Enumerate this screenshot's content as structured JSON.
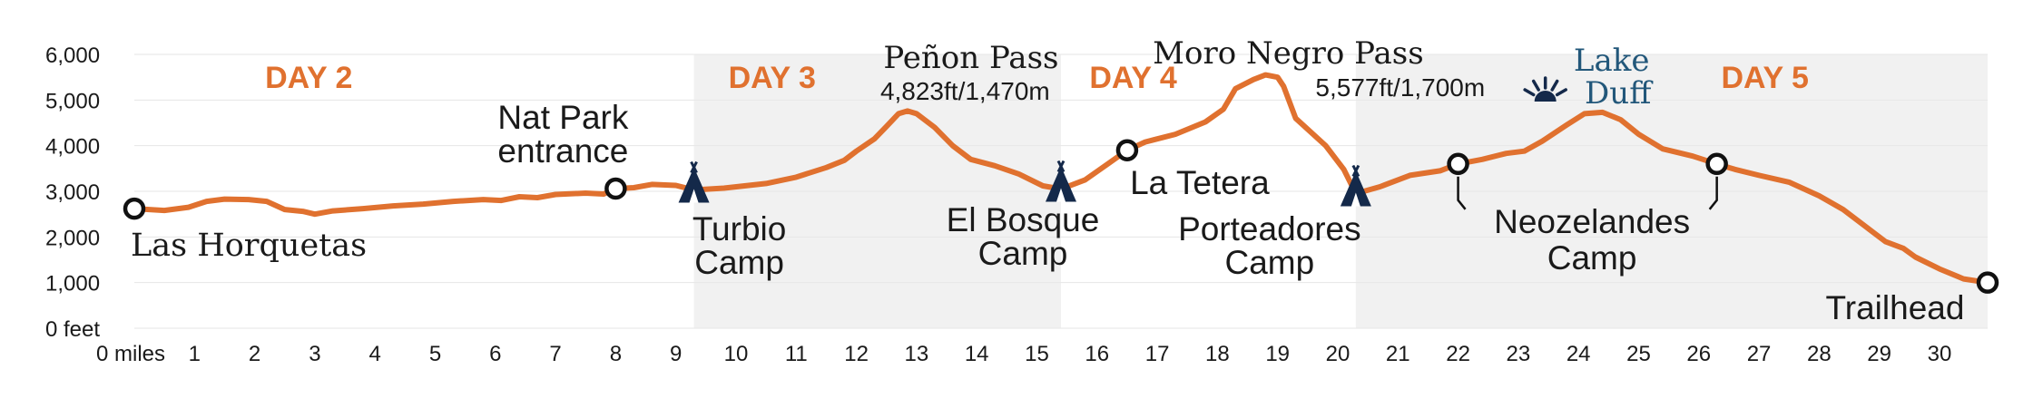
{
  "chart_data": {
    "type": "area",
    "colors": {
      "line": "#e0712f",
      "band": "#f1f1f1",
      "camp_icon": "#14294a",
      "lake": "#22577a"
    },
    "xlim": [
      0,
      30.8
    ],
    "ylim": [
      0,
      6000
    ],
    "y_ticks": [
      {
        "value": 0,
        "label": "0 feet"
      },
      {
        "value": 1000,
        "label": "1,000"
      },
      {
        "value": 2000,
        "label": "2,000"
      },
      {
        "value": 3000,
        "label": "3,000"
      },
      {
        "value": 4000,
        "label": "4,000"
      },
      {
        "value": 5000,
        "label": "5,000"
      },
      {
        "value": 6000,
        "label": "6,000"
      }
    ],
    "x_ticks": [
      {
        "value": 0,
        "label": "0 miles"
      },
      {
        "value": 1,
        "label": "1"
      },
      {
        "value": 2,
        "label": "2"
      },
      {
        "value": 3,
        "label": "3"
      },
      {
        "value": 4,
        "label": "4"
      },
      {
        "value": 5,
        "label": "5"
      },
      {
        "value": 6,
        "label": "6"
      },
      {
        "value": 7,
        "label": "7"
      },
      {
        "value": 8,
        "label": "8"
      },
      {
        "value": 9,
        "label": "9"
      },
      {
        "value": 10,
        "label": "10"
      },
      {
        "value": 11,
        "label": "11"
      },
      {
        "value": 12,
        "label": "12"
      },
      {
        "value": 13,
        "label": "13"
      },
      {
        "value": 14,
        "label": "14"
      },
      {
        "value": 15,
        "label": "15"
      },
      {
        "value": 16,
        "label": "16"
      },
      {
        "value": 17,
        "label": "17"
      },
      {
        "value": 18,
        "label": "18"
      },
      {
        "value": 19,
        "label": "19"
      },
      {
        "value": 20,
        "label": "20"
      },
      {
        "value": 21,
        "label": "21"
      },
      {
        "value": 22,
        "label": "22"
      },
      {
        "value": 23,
        "label": "23"
      },
      {
        "value": 24,
        "label": "24"
      },
      {
        "value": 25,
        "label": "25"
      },
      {
        "value": 26,
        "label": "26"
      },
      {
        "value": 27,
        "label": "27"
      },
      {
        "value": 28,
        "label": "28"
      },
      {
        "value": 29,
        "label": "29"
      },
      {
        "value": 30,
        "label": "30"
      }
    ],
    "days": [
      {
        "label": "DAY 2",
        "start": 0,
        "end": 9.3,
        "shaded": false
      },
      {
        "label": "DAY 3",
        "start": 9.3,
        "end": 15.4,
        "shaded": true
      },
      {
        "label": "DAY 4",
        "start": 15.4,
        "end": 20.3,
        "shaded": false
      },
      {
        "label": "DAY 5",
        "start": 20.3,
        "end": 30.8,
        "shaded": true
      }
    ],
    "profile": [
      [
        0,
        2620
      ],
      [
        0.5,
        2580
      ],
      [
        0.9,
        2650
      ],
      [
        1.2,
        2780
      ],
      [
        1.5,
        2830
      ],
      [
        1.9,
        2820
      ],
      [
        2.2,
        2780
      ],
      [
        2.5,
        2600
      ],
      [
        2.8,
        2560
      ],
      [
        3.0,
        2500
      ],
      [
        3.3,
        2570
      ],
      [
        3.8,
        2620
      ],
      [
        4.3,
        2680
      ],
      [
        4.8,
        2720
      ],
      [
        5.3,
        2780
      ],
      [
        5.8,
        2820
      ],
      [
        6.1,
        2800
      ],
      [
        6.4,
        2880
      ],
      [
        6.7,
        2860
      ],
      [
        7.0,
        2930
      ],
      [
        7.5,
        2960
      ],
      [
        7.8,
        2940
      ],
      [
        8.0,
        3060
      ],
      [
        8.3,
        3080
      ],
      [
        8.6,
        3150
      ],
      [
        9.0,
        3130
      ],
      [
        9.3,
        3030
      ],
      [
        9.8,
        3070
      ],
      [
        10.5,
        3170
      ],
      [
        11.0,
        3310
      ],
      [
        11.5,
        3520
      ],
      [
        11.8,
        3680
      ],
      [
        12.0,
        3880
      ],
      [
        12.3,
        4150
      ],
      [
        12.5,
        4420
      ],
      [
        12.7,
        4700
      ],
      [
        12.85,
        4760
      ],
      [
        13.0,
        4700
      ],
      [
        13.3,
        4400
      ],
      [
        13.6,
        4000
      ],
      [
        13.9,
        3700
      ],
      [
        14.3,
        3560
      ],
      [
        14.7,
        3380
      ],
      [
        15.1,
        3120
      ],
      [
        15.4,
        3050
      ],
      [
        15.8,
        3250
      ],
      [
        16.2,
        3620
      ],
      [
        16.5,
        3900
      ],
      [
        16.8,
        4080
      ],
      [
        17.3,
        4250
      ],
      [
        17.8,
        4520
      ],
      [
        18.1,
        4800
      ],
      [
        18.3,
        5250
      ],
      [
        18.6,
        5450
      ],
      [
        18.8,
        5550
      ],
      [
        19.0,
        5500
      ],
      [
        19.1,
        5300
      ],
      [
        19.3,
        4600
      ],
      [
        19.8,
        4000
      ],
      [
        20.1,
        3480
      ],
      [
        20.3,
        2950
      ],
      [
        20.7,
        3100
      ],
      [
        21.2,
        3350
      ],
      [
        21.7,
        3450
      ],
      [
        22.0,
        3600
      ],
      [
        22.4,
        3700
      ],
      [
        22.8,
        3830
      ],
      [
        23.1,
        3880
      ],
      [
        23.4,
        4100
      ],
      [
        23.8,
        4450
      ],
      [
        24.1,
        4700
      ],
      [
        24.4,
        4730
      ],
      [
        24.7,
        4570
      ],
      [
        25.0,
        4250
      ],
      [
        25.4,
        3930
      ],
      [
        25.9,
        3770
      ],
      [
        26.3,
        3600
      ],
      [
        26.6,
        3480
      ],
      [
        27.0,
        3350
      ],
      [
        27.5,
        3200
      ],
      [
        28.0,
        2900
      ],
      [
        28.4,
        2600
      ],
      [
        28.8,
        2200
      ],
      [
        29.1,
        1900
      ],
      [
        29.4,
        1750
      ],
      [
        29.6,
        1560
      ],
      [
        30.0,
        1300
      ],
      [
        30.4,
        1080
      ],
      [
        30.8,
        1000
      ]
    ],
    "waypoints": [
      {
        "name": "Las Horquetas",
        "x": 0,
        "y": 2620,
        "marker": "circle",
        "label_lines": [
          "Las Horquetas"
        ],
        "font": "serif",
        "label_pos": "below-right"
      },
      {
        "name": "Nat Park entrance",
        "x": 8.0,
        "y": 3060,
        "marker": "circle",
        "label_lines": [
          "Nat Park",
          "entrance"
        ],
        "font": "sans",
        "label_pos": "above"
      },
      {
        "name": "Turbio Camp",
        "x": 9.3,
        "y": 3030,
        "marker": "tent",
        "label_lines": [
          "Turbio",
          "Camp"
        ],
        "font": "sans",
        "label_pos": "below"
      },
      {
        "name": "El Bosque Camp",
        "x": 15.4,
        "y": 3050,
        "marker": "tent",
        "label_lines": [
          "El Bosque",
          "Camp"
        ],
        "font": "sans",
        "label_pos": "below-left"
      },
      {
        "name": "La Tetera",
        "x": 16.5,
        "y": 3900,
        "marker": "circle",
        "label_lines": [
          "La Tetera"
        ],
        "font": "sans",
        "label_pos": "below"
      },
      {
        "name": "Porteadores Camp",
        "x": 20.3,
        "y": 2950,
        "marker": "tent",
        "label_lines": [
          "Porteadores",
          "Camp"
        ],
        "font": "sans",
        "label_pos": "below-left"
      },
      {
        "name": "Neozelandes Camp A",
        "x": 22.0,
        "y": 3600,
        "marker": "circle",
        "label_lines": [],
        "font": "sans",
        "label_pos": "bracket"
      },
      {
        "name": "Neozelandes Camp B",
        "x": 26.3,
        "y": 3600,
        "marker": "circle",
        "label_lines": [],
        "font": "sans",
        "label_pos": "bracket"
      },
      {
        "name": "Trailhead",
        "x": 30.8,
        "y": 1000,
        "marker": "circle",
        "label_lines": [
          "Trailhead"
        ],
        "font": "sans",
        "label_pos": "below-left"
      }
    ],
    "neozelandes_label": [
      "Neozelandes",
      "Camp"
    ],
    "passes": [
      {
        "name": "Peñon Pass",
        "elevation": "4,823ft/1,470m",
        "x": 12.85
      },
      {
        "name": "Moro Negro Pass",
        "elevation": "5,577ft/1,700m",
        "x": 18.8
      }
    ],
    "lake": {
      "label_lines": [
        "Lake",
        "Duff"
      ],
      "x": 24.4,
      "icon": "sunrise-icon"
    }
  }
}
